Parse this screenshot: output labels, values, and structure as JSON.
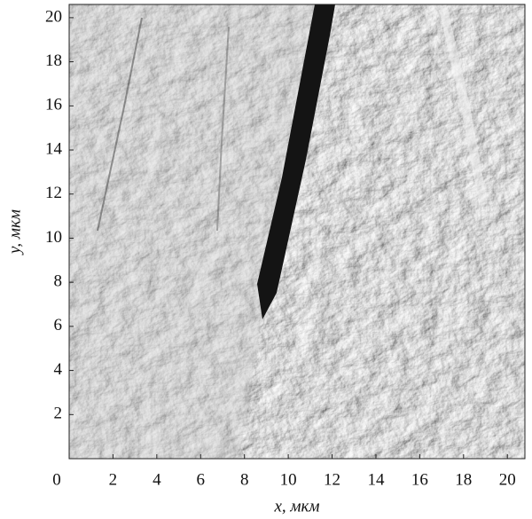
{
  "chart_data": {
    "type": "image",
    "xlabel": "x, мкм",
    "ylabel": "y, мкм",
    "xlim": [
      0,
      20.8
    ],
    "ylim": [
      0,
      20.6
    ],
    "xticks": [
      0,
      2,
      4,
      6,
      8,
      10,
      12,
      14,
      16,
      18,
      20
    ],
    "yticks": [
      2,
      4,
      6,
      8,
      10,
      12,
      14,
      16,
      18,
      20
    ]
  }
}
